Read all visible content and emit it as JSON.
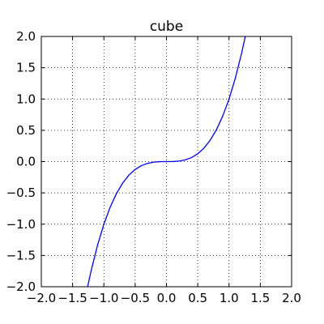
{
  "chart_data": {
    "type": "line",
    "title": "cube",
    "xlabel": "",
    "ylabel": "",
    "xlim": [
      -2.0,
      2.0
    ],
    "ylim": [
      -2.0,
      2.0
    ],
    "grid": true,
    "legend": "none",
    "x_ticks": [
      -2.0,
      -1.5,
      -1.0,
      -0.5,
      0.0,
      0.5,
      1.0,
      1.5,
      2.0
    ],
    "y_ticks": [
      -2.0,
      -1.5,
      -1.0,
      -0.5,
      0.0,
      0.5,
      1.0,
      1.5,
      2.0
    ],
    "x_tick_labels": [
      "−2.0",
      "−1.5",
      "−1.0",
      "−0.5",
      "0.0",
      "0.5",
      "1.0",
      "1.5",
      "2.0"
    ],
    "y_tick_labels": [
      "−2.0",
      "−1.5",
      "−1.0",
      "−0.5",
      "0.0",
      "0.5",
      "1.0",
      "1.5",
      "2.0"
    ],
    "series": [
      {
        "color": "#0000ff",
        "x": [
          -1.26,
          -1.2,
          -1.1,
          -1.0,
          -0.9,
          -0.8,
          -0.7,
          -0.6,
          -0.5,
          -0.4,
          -0.3,
          -0.2,
          -0.1,
          0.0,
          0.1,
          0.2,
          0.3,
          0.4,
          0.5,
          0.6,
          0.7,
          0.8,
          0.9,
          1.0,
          1.1,
          1.2,
          1.26
        ],
        "y": [
          -2.0,
          -1.728,
          -1.331,
          -1.0,
          -0.729,
          -0.512,
          -0.343,
          -0.216,
          -0.125,
          -0.064,
          -0.027,
          -0.008,
          -0.001,
          0.0,
          0.001,
          0.008,
          0.027,
          0.064,
          0.125,
          0.216,
          0.343,
          0.512,
          0.729,
          1.0,
          1.331,
          1.728,
          2.0
        ]
      }
    ]
  }
}
